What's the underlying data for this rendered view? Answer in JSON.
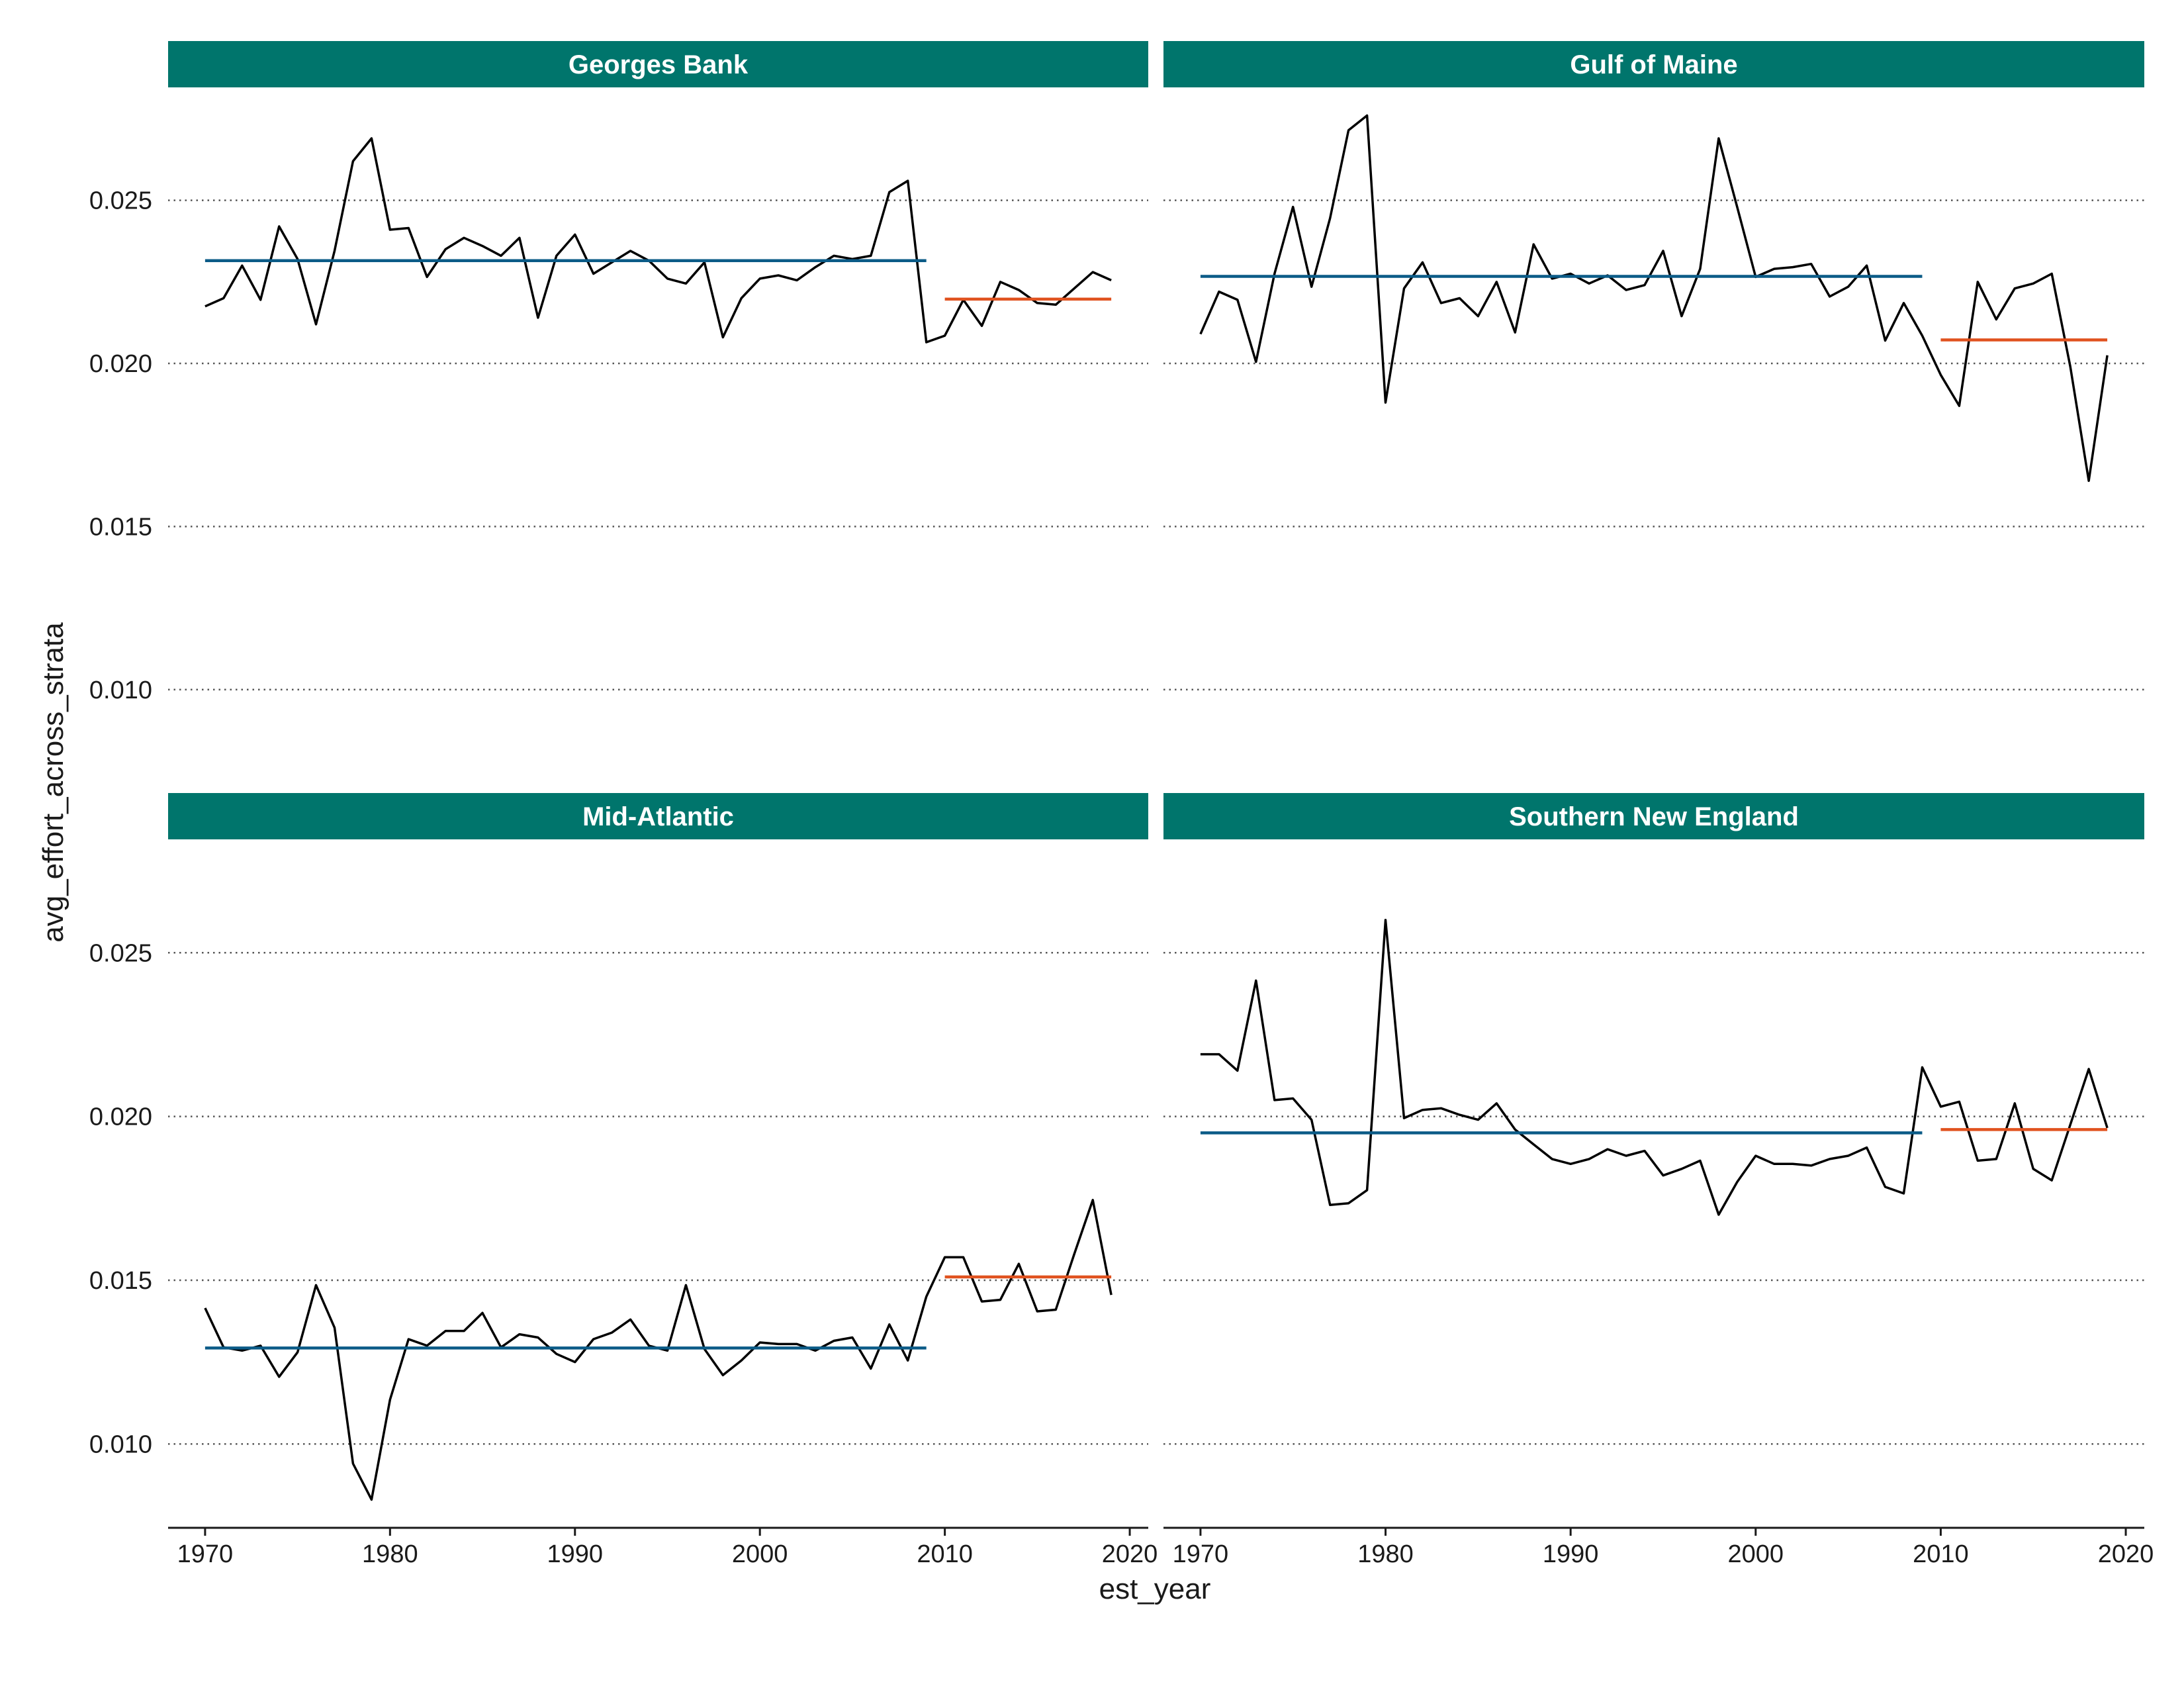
{
  "chart_data": {
    "type": "line",
    "xlabel": "est_year",
    "ylabel": "avg_effort_across_strata",
    "xlim": [
      1968,
      2021
    ],
    "ylim": [
      0.0075,
      0.0283
    ],
    "x_ticks": [
      1970,
      1980,
      1990,
      2000,
      2010,
      2020
    ],
    "x_tick_labels": [
      "1970",
      "1980",
      "1990",
      "2000",
      "2010",
      "2020"
    ],
    "y_ticks": [
      0.01,
      0.015,
      0.02,
      0.025
    ],
    "y_tick_labels": [
      "0.010",
      "0.015",
      "0.020",
      "0.025"
    ],
    "grid": "horizontal dotted",
    "colors": {
      "strip": "#00756c",
      "line": "#000000",
      "mean_early": "#0b5b87",
      "mean_late": "#e0521f",
      "grid": "#555555"
    },
    "panels": [
      {
        "title": "Georges Bank",
        "years": [
          1970,
          1971,
          1972,
          1973,
          1974,
          1975,
          1976,
          1977,
          1978,
          1979,
          1980,
          1981,
          1982,
          1983,
          1984,
          1985,
          1986,
          1987,
          1988,
          1989,
          1990,
          1991,
          1992,
          1993,
          1994,
          1995,
          1996,
          1997,
          1998,
          1999,
          2000,
          2001,
          2002,
          2003,
          2004,
          2005,
          2006,
          2007,
          2008,
          2009,
          2010,
          2011,
          2012,
          2013,
          2014,
          2015,
          2016,
          2017,
          2018,
          2019
        ],
        "values": [
          0.02175,
          0.022,
          0.023,
          0.02195,
          0.0242,
          0.0232,
          0.0212,
          0.02345,
          0.0262,
          0.0269,
          0.0241,
          0.02415,
          0.02265,
          0.0235,
          0.02385,
          0.0236,
          0.0233,
          0.02385,
          0.0214,
          0.0233,
          0.02395,
          0.02275,
          0.0231,
          0.02345,
          0.02315,
          0.0226,
          0.02245,
          0.0231,
          0.0208,
          0.022,
          0.0226,
          0.0227,
          0.02255,
          0.02295,
          0.0233,
          0.0232,
          0.0233,
          0.02525,
          0.0256,
          0.02065,
          0.02085,
          0.02195,
          0.02115,
          0.0225,
          0.02225,
          0.02185,
          0.0218,
          0.0223,
          0.0228,
          0.02255
        ],
        "mean_early": {
          "start": 1970,
          "end": 2009,
          "value": 0.02315
        },
        "mean_late": {
          "start": 2010,
          "end": 2019,
          "value": 0.02197
        }
      },
      {
        "title": "Gulf of Maine",
        "years": [
          1970,
          1971,
          1972,
          1973,
          1974,
          1975,
          1976,
          1977,
          1978,
          1979,
          1980,
          1981,
          1982,
          1983,
          1984,
          1985,
          1986,
          1987,
          1988,
          1989,
          1990,
          1991,
          1992,
          1993,
          1994,
          1995,
          1996,
          1997,
          1998,
          1999,
          2000,
          2001,
          2002,
          2003,
          2004,
          2005,
          2006,
          2007,
          2008,
          2009,
          2010,
          2011,
          2012,
          2013,
          2014,
          2015,
          2016,
          2017,
          2018,
          2019
        ],
        "values": [
          0.0209,
          0.0222,
          0.02195,
          0.02005,
          0.02275,
          0.0248,
          0.02235,
          0.02445,
          0.02715,
          0.0276,
          0.0188,
          0.0223,
          0.0231,
          0.02185,
          0.022,
          0.02145,
          0.0225,
          0.02095,
          0.02365,
          0.0226,
          0.02275,
          0.02245,
          0.0227,
          0.02225,
          0.0224,
          0.02345,
          0.02145,
          0.0229,
          0.0269,
          0.0248,
          0.02265,
          0.0229,
          0.02295,
          0.02305,
          0.02205,
          0.02235,
          0.023,
          0.0207,
          0.02185,
          0.02085,
          0.01965,
          0.0187,
          0.0225,
          0.02135,
          0.0223,
          0.02245,
          0.02275,
          0.0199,
          0.0164,
          0.02025
        ],
        "mean_early": {
          "start": 1970,
          "end": 2009,
          "value": 0.02267
        },
        "mean_late": {
          "start": 2010,
          "end": 2019,
          "value": 0.02072
        }
      },
      {
        "title": "Mid-Atlantic",
        "years": [
          1970,
          1971,
          1972,
          1973,
          1974,
          1975,
          1976,
          1977,
          1978,
          1979,
          1980,
          1981,
          1982,
          1983,
          1984,
          1985,
          1986,
          1987,
          1988,
          1989,
          1990,
          1991,
          1992,
          1993,
          1994,
          1995,
          1996,
          1997,
          1998,
          1999,
          2000,
          2001,
          2002,
          2003,
          2004,
          2005,
          2006,
          2007,
          2008,
          2009,
          2010,
          2011,
          2012,
          2013,
          2014,
          2015,
          2016,
          2017,
          2018,
          2019
        ],
        "values": [
          0.01415,
          0.01295,
          0.01285,
          0.013,
          0.01205,
          0.0128,
          0.01485,
          0.01355,
          0.0094,
          0.0083,
          0.01135,
          0.0132,
          0.013,
          0.01345,
          0.01345,
          0.014,
          0.01295,
          0.01335,
          0.01325,
          0.01275,
          0.0125,
          0.0132,
          0.0134,
          0.0138,
          0.013,
          0.01285,
          0.01485,
          0.0129,
          0.0121,
          0.01255,
          0.0131,
          0.01305,
          0.01305,
          0.01285,
          0.01315,
          0.01325,
          0.0123,
          0.01365,
          0.01255,
          0.0145,
          0.0157,
          0.0157,
          0.01435,
          0.0144,
          0.0155,
          0.01405,
          0.0141,
          0.0158,
          0.01745,
          0.01455
        ],
        "mean_early": {
          "start": 1970,
          "end": 2009,
          "value": 0.01293
        },
        "mean_late": {
          "start": 2010,
          "end": 2019,
          "value": 0.0151
        }
      },
      {
        "title": "Southern New England",
        "years": [
          1970,
          1971,
          1972,
          1973,
          1974,
          1975,
          1976,
          1977,
          1978,
          1979,
          1980,
          1981,
          1982,
          1983,
          1984,
          1985,
          1986,
          1987,
          1988,
          1989,
          1990,
          1991,
          1992,
          1993,
          1994,
          1995,
          1996,
          1997,
          1998,
          1999,
          2000,
          2001,
          2002,
          2003,
          2004,
          2005,
          2006,
          2007,
          2008,
          2009,
          2010,
          2011,
          2012,
          2013,
          2014,
          2015,
          2016,
          2017,
          2018,
          2019
        ],
        "values": [
          0.0219,
          0.0219,
          0.0214,
          0.02415,
          0.0205,
          0.02055,
          0.0199,
          0.0173,
          0.01735,
          0.01775,
          0.026,
          0.01995,
          0.0202,
          0.02025,
          0.02005,
          0.0199,
          0.0204,
          0.0196,
          0.01915,
          0.0187,
          0.01855,
          0.0187,
          0.019,
          0.0188,
          0.01895,
          0.0182,
          0.0184,
          0.01865,
          0.017,
          0.018,
          0.0188,
          0.01855,
          0.01855,
          0.0185,
          0.0187,
          0.0188,
          0.01905,
          0.01785,
          0.01765,
          0.0215,
          0.0203,
          0.02045,
          0.01865,
          0.0187,
          0.0204,
          0.0184,
          0.01805,
          0.01975,
          0.02145,
          0.01965
        ],
        "mean_early": {
          "start": 1970,
          "end": 2009,
          "value": 0.0195
        },
        "mean_late": {
          "start": 2010,
          "end": 2019,
          "value": 0.0196
        }
      }
    ]
  }
}
